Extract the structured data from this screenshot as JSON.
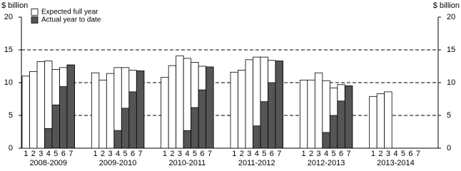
{
  "chart_data": {
    "type": "bar",
    "y_label": "$ billion",
    "groups": [
      "2008-2009",
      "2009-2010",
      "2010-2011",
      "2011-2012",
      "2012-2013",
      "2013-2014"
    ],
    "categories": [
      "1",
      "2",
      "3",
      "4",
      "5",
      "6",
      "7",
      "1",
      "2",
      "3",
      "4",
      "5",
      "6",
      "7",
      "1",
      "2",
      "3",
      "4",
      "5",
      "6",
      "7",
      "1",
      "2",
      "3",
      "4",
      "5",
      "6",
      "7",
      "1",
      "2",
      "3",
      "4",
      "5",
      "6",
      "7",
      "1",
      "2",
      "3",
      "4",
      "5",
      "6",
      "7"
    ],
    "series": [
      {
        "name": "Expected full year",
        "color": "#ffffff",
        "values": [
          11.0,
          11.7,
          13.2,
          13.3,
          12.0,
          12.3,
          12.7,
          11.5,
          10.4,
          11.4,
          12.3,
          12.3,
          11.9,
          11.8,
          10.8,
          12.6,
          14.1,
          13.7,
          13.1,
          12.5,
          12.4,
          11.6,
          11.9,
          13.5,
          13.9,
          13.9,
          13.4,
          13.3,
          10.4,
          10.4,
          11.5,
          10.3,
          9.2,
          9.7,
          9.5,
          7.9,
          8.3,
          8.6,
          null,
          null,
          null,
          null
        ]
      },
      {
        "name": "Actual year to date",
        "color": "#555555",
        "values": [
          null,
          null,
          null,
          3.0,
          6.6,
          9.4,
          12.7,
          null,
          null,
          null,
          2.7,
          6.1,
          8.6,
          11.8,
          null,
          null,
          null,
          2.7,
          6.2,
          8.9,
          12.4,
          null,
          null,
          null,
          3.4,
          7.1,
          10.0,
          13.3,
          null,
          null,
          null,
          2.4,
          5.0,
          7.2,
          9.5,
          null,
          null,
          null,
          null,
          null,
          null,
          null
        ]
      }
    ],
    "ylim": [
      0,
      20
    ],
    "yticks": [
      0,
      5,
      10,
      15,
      20
    ],
    "grid": true,
    "legend": "top-left"
  }
}
